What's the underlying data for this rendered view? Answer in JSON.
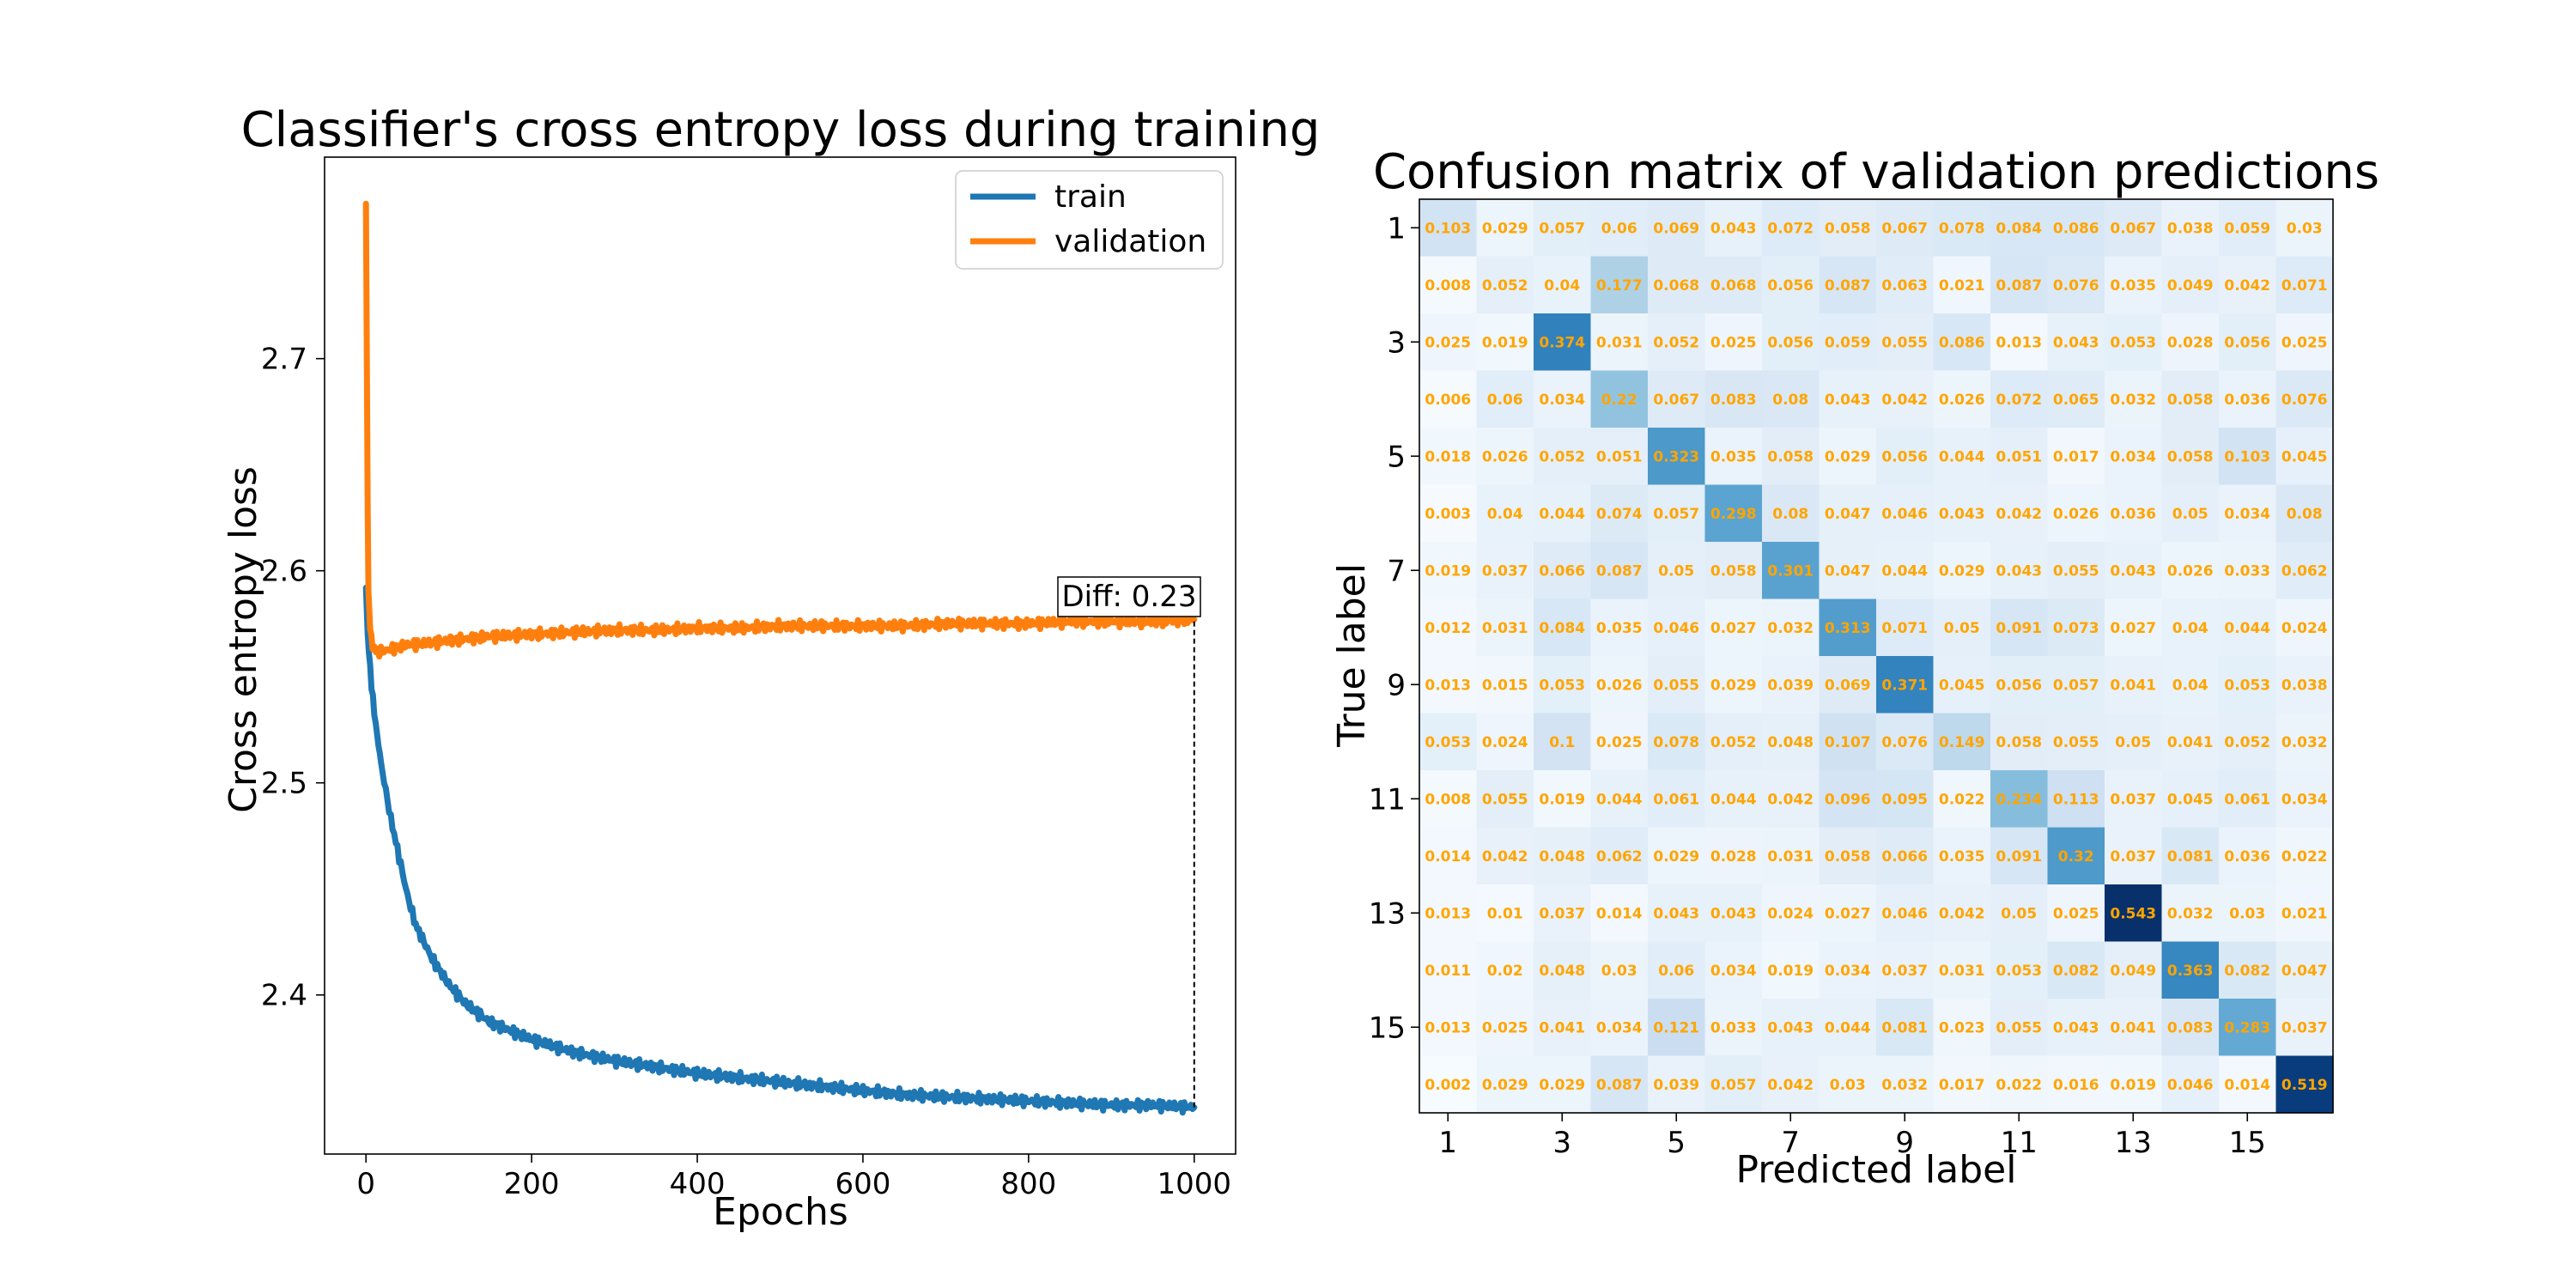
{
  "chart_data": [
    {
      "type": "line",
      "title": "Classifier's cross entropy loss during training",
      "xlabel": "Epochs",
      "ylabel": "Cross entropy loss",
      "xlim": [
        -50,
        1050
      ],
      "ylim": [
        2.325,
        2.795
      ],
      "xticks": [
        0,
        200,
        400,
        600,
        800,
        1000
      ],
      "yticks": [
        2.4,
        2.5,
        2.6,
        2.7
      ],
      "legend": "top-right",
      "grid": false,
      "annotation": {
        "text": "Diff: 0.23",
        "x": 1000,
        "y_from": 2.347,
        "y_to": 2.577
      },
      "series": [
        {
          "name": "train",
          "color": "#1f77b4",
          "x": [
            0,
            2,
            5,
            10,
            15,
            20,
            30,
            40,
            50,
            60,
            80,
            100,
            120,
            150,
            200,
            250,
            300,
            350,
            400,
            450,
            500,
            550,
            600,
            650,
            700,
            750,
            800,
            850,
            900,
            950,
            1000
          ],
          "y": [
            2.592,
            2.57,
            2.553,
            2.533,
            2.518,
            2.505,
            2.483,
            2.465,
            2.447,
            2.433,
            2.417,
            2.405,
            2.396,
            2.387,
            2.379,
            2.373,
            2.369,
            2.366,
            2.363,
            2.361,
            2.359,
            2.357,
            2.355,
            2.353,
            2.352,
            2.351,
            2.35,
            2.349,
            2.348,
            2.348,
            2.347
          ]
        },
        {
          "name": "validation",
          "color": "#ff7f0e",
          "x": [
            0,
            1,
            2,
            3,
            5,
            8,
            12,
            20,
            30,
            50,
            80,
            100,
            150,
            200,
            250,
            300,
            350,
            400,
            450,
            500,
            550,
            600,
            650,
            700,
            750,
            800,
            850,
            900,
            950,
            1000
          ],
          "y": [
            2.773,
            2.7,
            2.63,
            2.59,
            2.573,
            2.565,
            2.562,
            2.562,
            2.563,
            2.565,
            2.566,
            2.567,
            2.569,
            2.57,
            2.571,
            2.572,
            2.572,
            2.573,
            2.573,
            2.574,
            2.574,
            2.574,
            2.574,
            2.575,
            2.575,
            2.575,
            2.576,
            2.576,
            2.576,
            2.577
          ]
        }
      ]
    },
    {
      "type": "heatmap",
      "title": "Confusion matrix of validation predictions",
      "xlabel": "Predicted label",
      "ylabel": "True label",
      "ticks": [
        1,
        3,
        5,
        7,
        9,
        11,
        13,
        15
      ],
      "colormap": "Blues",
      "vmax": 0.543,
      "cell_text_color": "#ffa500",
      "matrix": [
        [
          0.103,
          0.029,
          0.057,
          0.06,
          0.069,
          0.043,
          0.072,
          0.058,
          0.067,
          0.078,
          0.084,
          0.086,
          0.067,
          0.038,
          0.059,
          0.03
        ],
        [
          0.008,
          0.052,
          0.04,
          0.177,
          0.068,
          0.068,
          0.056,
          0.087,
          0.063,
          0.021,
          0.087,
          0.076,
          0.035,
          0.049,
          0.042,
          0.071
        ],
        [
          0.025,
          0.019,
          0.374,
          0.031,
          0.052,
          0.025,
          0.056,
          0.059,
          0.055,
          0.086,
          0.013,
          0.043,
          0.053,
          0.028,
          0.056,
          0.025
        ],
        [
          0.006,
          0.06,
          0.034,
          0.22,
          0.067,
          0.083,
          0.08,
          0.043,
          0.042,
          0.026,
          0.072,
          0.065,
          0.032,
          0.058,
          0.036,
          0.076
        ],
        [
          0.018,
          0.026,
          0.052,
          0.051,
          0.323,
          0.035,
          0.058,
          0.029,
          0.056,
          0.044,
          0.051,
          0.017,
          0.034,
          0.058,
          0.103,
          0.045
        ],
        [
          0.003,
          0.04,
          0.044,
          0.074,
          0.057,
          0.298,
          0.08,
          0.047,
          0.046,
          0.043,
          0.042,
          0.026,
          0.036,
          0.05,
          0.034,
          0.08
        ],
        [
          0.019,
          0.037,
          0.066,
          0.087,
          0.05,
          0.058,
          0.301,
          0.047,
          0.044,
          0.029,
          0.043,
          0.055,
          0.043,
          0.026,
          0.033,
          0.062
        ],
        [
          0.012,
          0.031,
          0.084,
          0.035,
          0.046,
          0.027,
          0.032,
          0.313,
          0.071,
          0.05,
          0.091,
          0.073,
          0.027,
          0.04,
          0.044,
          0.024
        ],
        [
          0.013,
          0.015,
          0.053,
          0.026,
          0.055,
          0.029,
          0.039,
          0.069,
          0.371,
          0.045,
          0.056,
          0.057,
          0.041,
          0.04,
          0.053,
          0.038
        ],
        [
          0.053,
          0.024,
          0.1,
          0.025,
          0.078,
          0.052,
          0.048,
          0.107,
          0.076,
          0.149,
          0.058,
          0.055,
          0.05,
          0.041,
          0.052,
          0.032
        ],
        [
          0.008,
          0.055,
          0.019,
          0.044,
          0.061,
          0.044,
          0.042,
          0.096,
          0.095,
          0.022,
          0.234,
          0.113,
          0.037,
          0.045,
          0.061,
          0.034
        ],
        [
          0.014,
          0.042,
          0.048,
          0.062,
          0.029,
          0.028,
          0.031,
          0.058,
          0.066,
          0.035,
          0.091,
          0.32,
          0.037,
          0.081,
          0.036,
          0.022
        ],
        [
          0.013,
          0.01,
          0.037,
          0.014,
          0.043,
          0.043,
          0.024,
          0.027,
          0.046,
          0.042,
          0.05,
          0.025,
          0.543,
          0.032,
          0.03,
          0.021
        ],
        [
          0.011,
          0.02,
          0.048,
          0.03,
          0.06,
          0.034,
          0.019,
          0.034,
          0.037,
          0.031,
          0.053,
          0.082,
          0.049,
          0.363,
          0.082,
          0.047
        ],
        [
          0.013,
          0.025,
          0.041,
          0.034,
          0.121,
          0.033,
          0.043,
          0.044,
          0.081,
          0.023,
          0.055,
          0.043,
          0.041,
          0.083,
          0.283,
          0.037
        ],
        [
          0.002,
          0.029,
          0.029,
          0.087,
          0.039,
          0.057,
          0.042,
          0.03,
          0.032,
          0.017,
          0.022,
          0.016,
          0.019,
          0.046,
          0.014,
          0.519
        ]
      ]
    }
  ]
}
